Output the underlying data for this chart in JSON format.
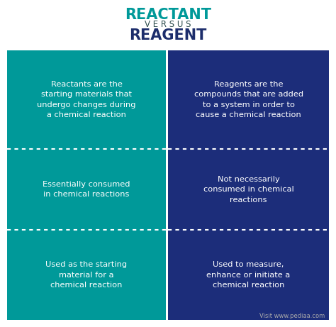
{
  "title1": "REACTANT",
  "title2": "V E R S U S",
  "title3": "REAGENT",
  "title1_color": "#009999",
  "title2_color": "#2F4F4F",
  "title3_color": "#1C2D6B",
  "left_bg": "#009999",
  "right_bg": "#1C2D7A",
  "fig_bg": "#FFFFFF",
  "left_cells": [
    "Reactants are the\nstarting materials that\nundergo changes during\na chemical reaction",
    "Essentially consumed\nin chemical reactions",
    "Used as the starting\nmaterial for a\nchemical reaction"
  ],
  "right_cells": [
    "Reagents are the\ncompounds that are added\nto a system in order to\ncause a chemical reaction",
    "Not necessarily\nconsumed in chemical\nreactions",
    "Used to measure,\nenhance or initiate a\nchemical reaction"
  ],
  "cell_text_color": "#FFFFFF",
  "watermark": "Visit www.pediaa.com",
  "watermark_color": "#AAAAAA",
  "dashed_color": "#FFFFFF"
}
